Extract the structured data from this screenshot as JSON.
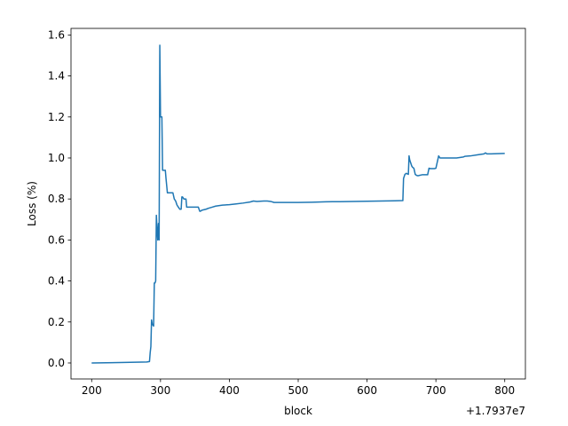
{
  "chart_data": {
    "type": "line",
    "title": "",
    "xlabel": "block",
    "ylabel": "Loss (%)",
    "x_offset_label": "+1.7937e7",
    "xlim": [
      170,
      830
    ],
    "ylim": [
      -0.078,
      1.632
    ],
    "x_ticks": [
      200,
      300,
      400,
      500,
      600,
      700,
      800
    ],
    "x_tick_labels": [
      "200",
      "300",
      "400",
      "500",
      "600",
      "700",
      "800"
    ],
    "y_ticks": [
      0.0,
      0.2,
      0.4,
      0.6,
      0.8,
      1.0,
      1.2,
      1.4,
      1.6
    ],
    "y_tick_labels": [
      "0.0",
      "0.2",
      "0.4",
      "0.6",
      "0.8",
      "1.0",
      "1.2",
      "1.4",
      "1.6"
    ],
    "grid": false,
    "line_color": "#1f77b4",
    "series": [
      {
        "x": [
          200,
          240,
          280,
          284,
          285,
          286,
          287,
          288,
          290,
          291,
          292,
          293,
          294,
          295,
          296,
          297,
          298,
          299,
          300,
          301,
          302,
          303,
          304,
          306,
          307,
          308,
          310,
          311,
          312,
          314,
          318,
          320,
          322,
          324,
          326,
          328,
          330,
          331,
          332,
          334,
          336,
          337,
          338,
          340,
          344,
          350,
          355,
          356,
          357,
          358,
          360,
          366,
          370,
          375,
          380,
          390,
          400,
          410,
          420,
          430,
          435,
          440,
          450,
          455,
          460,
          465,
          470,
          480,
          490,
          500,
          520,
          540,
          550,
          560,
          580,
          600,
          620,
          640,
          652,
          653,
          655,
          657,
          660,
          661,
          662,
          663,
          664,
          665,
          666,
          668,
          670,
          672,
          674,
          676,
          680,
          684,
          686,
          688,
          690,
          692,
          694,
          696,
          698,
          700,
          704,
          706,
          707,
          708,
          710,
          720,
          730,
          740,
          742,
          750,
          760,
          770,
          772,
          774,
          780,
          790,
          800
        ],
        "y": [
          0.0,
          0.002,
          0.005,
          0.007,
          0.05,
          0.08,
          0.21,
          0.19,
          0.18,
          0.39,
          0.39,
          0.4,
          0.72,
          0.65,
          0.6,
          0.68,
          0.6,
          1.55,
          1.2,
          1.2,
          1.2,
          0.94,
          0.94,
          0.94,
          0.94,
          0.9,
          0.83,
          0.83,
          0.83,
          0.83,
          0.83,
          0.8,
          0.79,
          0.77,
          0.76,
          0.75,
          0.75,
          0.81,
          0.81,
          0.8,
          0.8,
          0.8,
          0.76,
          0.76,
          0.76,
          0.76,
          0.76,
          0.75,
          0.74,
          0.74,
          0.745,
          0.75,
          0.755,
          0.76,
          0.765,
          0.77,
          0.772,
          0.776,
          0.78,
          0.785,
          0.79,
          0.788,
          0.79,
          0.79,
          0.788,
          0.783,
          0.783,
          0.783,
          0.783,
          0.783,
          0.784,
          0.786,
          0.787,
          0.787,
          0.788,
          0.789,
          0.79,
          0.791,
          0.792,
          0.9,
          0.92,
          0.925,
          0.92,
          1.01,
          0.99,
          0.98,
          0.97,
          0.96,
          0.955,
          0.95,
          0.92,
          0.915,
          0.913,
          0.915,
          0.918,
          0.918,
          0.918,
          0.918,
          0.95,
          0.948,
          0.948,
          0.948,
          0.948,
          0.95,
          1.01,
          1.0,
          1.0,
          1.0,
          1.0,
          1.0,
          1.0,
          1.005,
          1.008,
          1.01,
          1.015,
          1.02,
          1.025,
          1.02,
          1.02,
          1.021,
          1.022
        ]
      }
    ]
  }
}
